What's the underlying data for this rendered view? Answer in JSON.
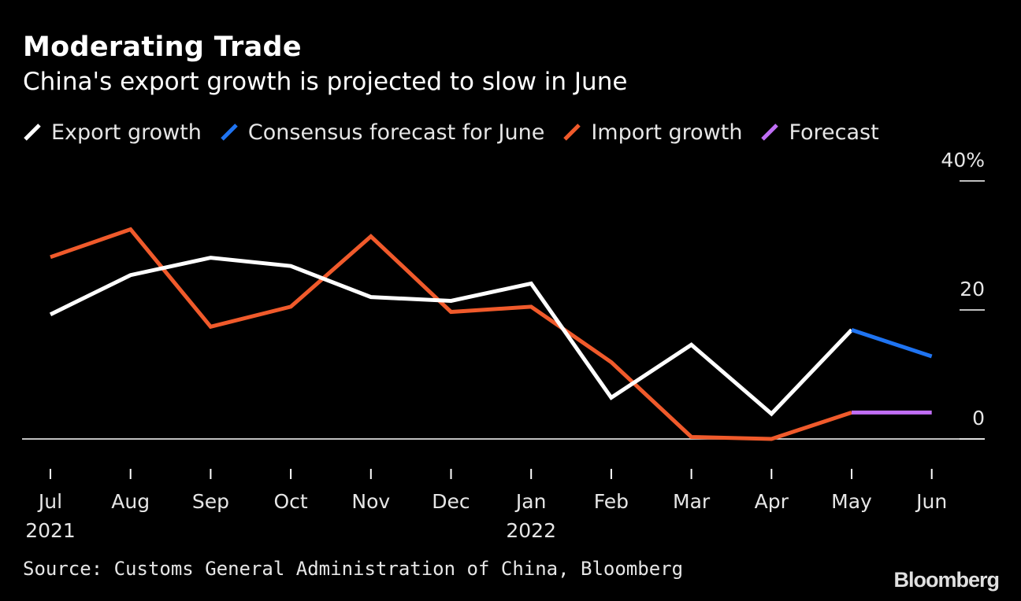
{
  "header": {
    "title": "Moderating Trade",
    "subtitle": "China's export growth is projected to slow in June"
  },
  "legend": [
    {
      "label": "Export growth",
      "color": "#ffffff"
    },
    {
      "label": "Consensus forecast for June",
      "color": "#1f74f2"
    },
    {
      "label": "Import growth",
      "color": "#f05a2b"
    },
    {
      "label": "Forecast",
      "color": "#c06ef5"
    }
  ],
  "chart_data": {
    "type": "line",
    "categories": [
      "Jul",
      "Aug",
      "Sep",
      "Oct",
      "Nov",
      "Dec",
      "Jan",
      "Feb",
      "Mar",
      "Apr",
      "May",
      "Jun"
    ],
    "category_sublabels": [
      "2021",
      "",
      "",
      "",
      "",
      "",
      "2022",
      "",
      "",
      "",
      "",
      ""
    ],
    "series": [
      {
        "name": "Export growth",
        "color": "#ffffff",
        "values": [
          19.3,
          25.4,
          28.1,
          26.8,
          22.0,
          21.4,
          24.1,
          6.4,
          14.6,
          3.9,
          16.9,
          null
        ]
      },
      {
        "name": "Consensus forecast for June",
        "color": "#1f74f2",
        "values": [
          null,
          null,
          null,
          null,
          null,
          null,
          null,
          null,
          null,
          null,
          16.9,
          12.8
        ]
      },
      {
        "name": "Import growth",
        "color": "#f05a2b",
        "values": [
          28.2,
          32.5,
          17.4,
          20.5,
          31.4,
          19.7,
          20.5,
          11.9,
          0.3,
          0.0,
          4.1,
          null
        ]
      },
      {
        "name": "Forecast",
        "color": "#c06ef5",
        "values": [
          null,
          null,
          null,
          null,
          null,
          null,
          null,
          null,
          null,
          null,
          4.1,
          4.1
        ]
      }
    ],
    "y_ticks": [
      {
        "value": 40,
        "label": "40%"
      },
      {
        "value": 20,
        "label": "20"
      },
      {
        "value": 0,
        "label": "0"
      }
    ],
    "ylim": [
      -4,
      40
    ],
    "y_axis_position": "right",
    "grid": false
  },
  "footer": {
    "source": "Source: Customs General Administration of China, Bloomberg",
    "brand": "Bloomberg"
  }
}
